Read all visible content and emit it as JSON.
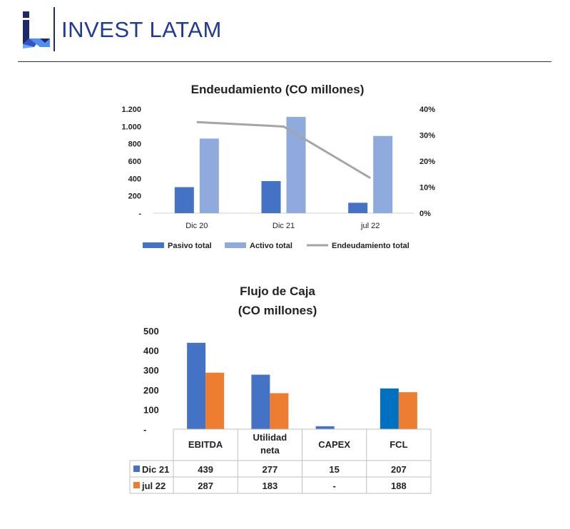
{
  "header": {
    "brand": "INVEST LATAM",
    "colors": {
      "brand": "#1f3a93",
      "logo_dark": "#1c2a6b",
      "logo_light": "#3a7bd5"
    }
  },
  "chart_data": [
    {
      "type": "bar",
      "title": "Endeudamiento (CO millones)",
      "categories": [
        "Dic 20",
        "Dic 21",
        "jul 22"
      ],
      "series": [
        {
          "name": "Pasivo total",
          "type": "bar",
          "axis": "left",
          "color": "#4472c4",
          "values": [
            300,
            370,
            120
          ]
        },
        {
          "name": "Activo total",
          "type": "bar",
          "axis": "left",
          "color": "#8faadc",
          "values": [
            860,
            1110,
            890
          ]
        },
        {
          "name": "Endeudamiento total",
          "type": "line",
          "axis": "right",
          "color": "#a5a5a5",
          "values": [
            0.35,
            0.333,
            0.135
          ]
        }
      ],
      "ylim": [
        0,
        1200
      ],
      "yticks": [
        0,
        200,
        400,
        600,
        800,
        1000,
        1200
      ],
      "ytick_labels": [
        "-",
        "200",
        "400",
        "600",
        "800",
        "1.000",
        "1.200"
      ],
      "y2lim": [
        0,
        0.4
      ],
      "y2ticks": [
        0,
        0.1,
        0.2,
        0.3,
        0.4
      ],
      "y2tick_labels": [
        "0%",
        "10%",
        "20%",
        "30%",
        "40%"
      ],
      "grid": false,
      "legend": "bottom"
    },
    {
      "type": "bar",
      "title": "Flujo de Caja",
      "subtitle": "(CO millones)",
      "categories": [
        "EBITDA",
        "Utilidad neta",
        "CAPEX",
        "FCL"
      ],
      "category_lines": [
        [
          "EBITDA"
        ],
        [
          "Utilidad",
          "neta"
        ],
        [
          "CAPEX"
        ],
        [
          "FCL"
        ]
      ],
      "series": [
        {
          "name": "Dic 21",
          "color": "#4472c4",
          "values": [
            439,
            277,
            15,
            207
          ],
          "labels": [
            "439",
            "277",
            "15",
            "207"
          ]
        },
        {
          "name": "jul 22",
          "color": "#ed7d31",
          "values": [
            287,
            183,
            0,
            188
          ],
          "labels": [
            "287",
            "183",
            "-",
            "188"
          ]
        }
      ],
      "bar_overrides": {
        "FCL": "#0070c0"
      },
      "ylim": [
        0,
        500
      ],
      "yticks": [
        0,
        100,
        200,
        300,
        400,
        500
      ],
      "ytick_labels": [
        "-",
        "100",
        "200",
        "300",
        "400",
        "500"
      ],
      "grid": false,
      "legend": "data-table"
    }
  ]
}
